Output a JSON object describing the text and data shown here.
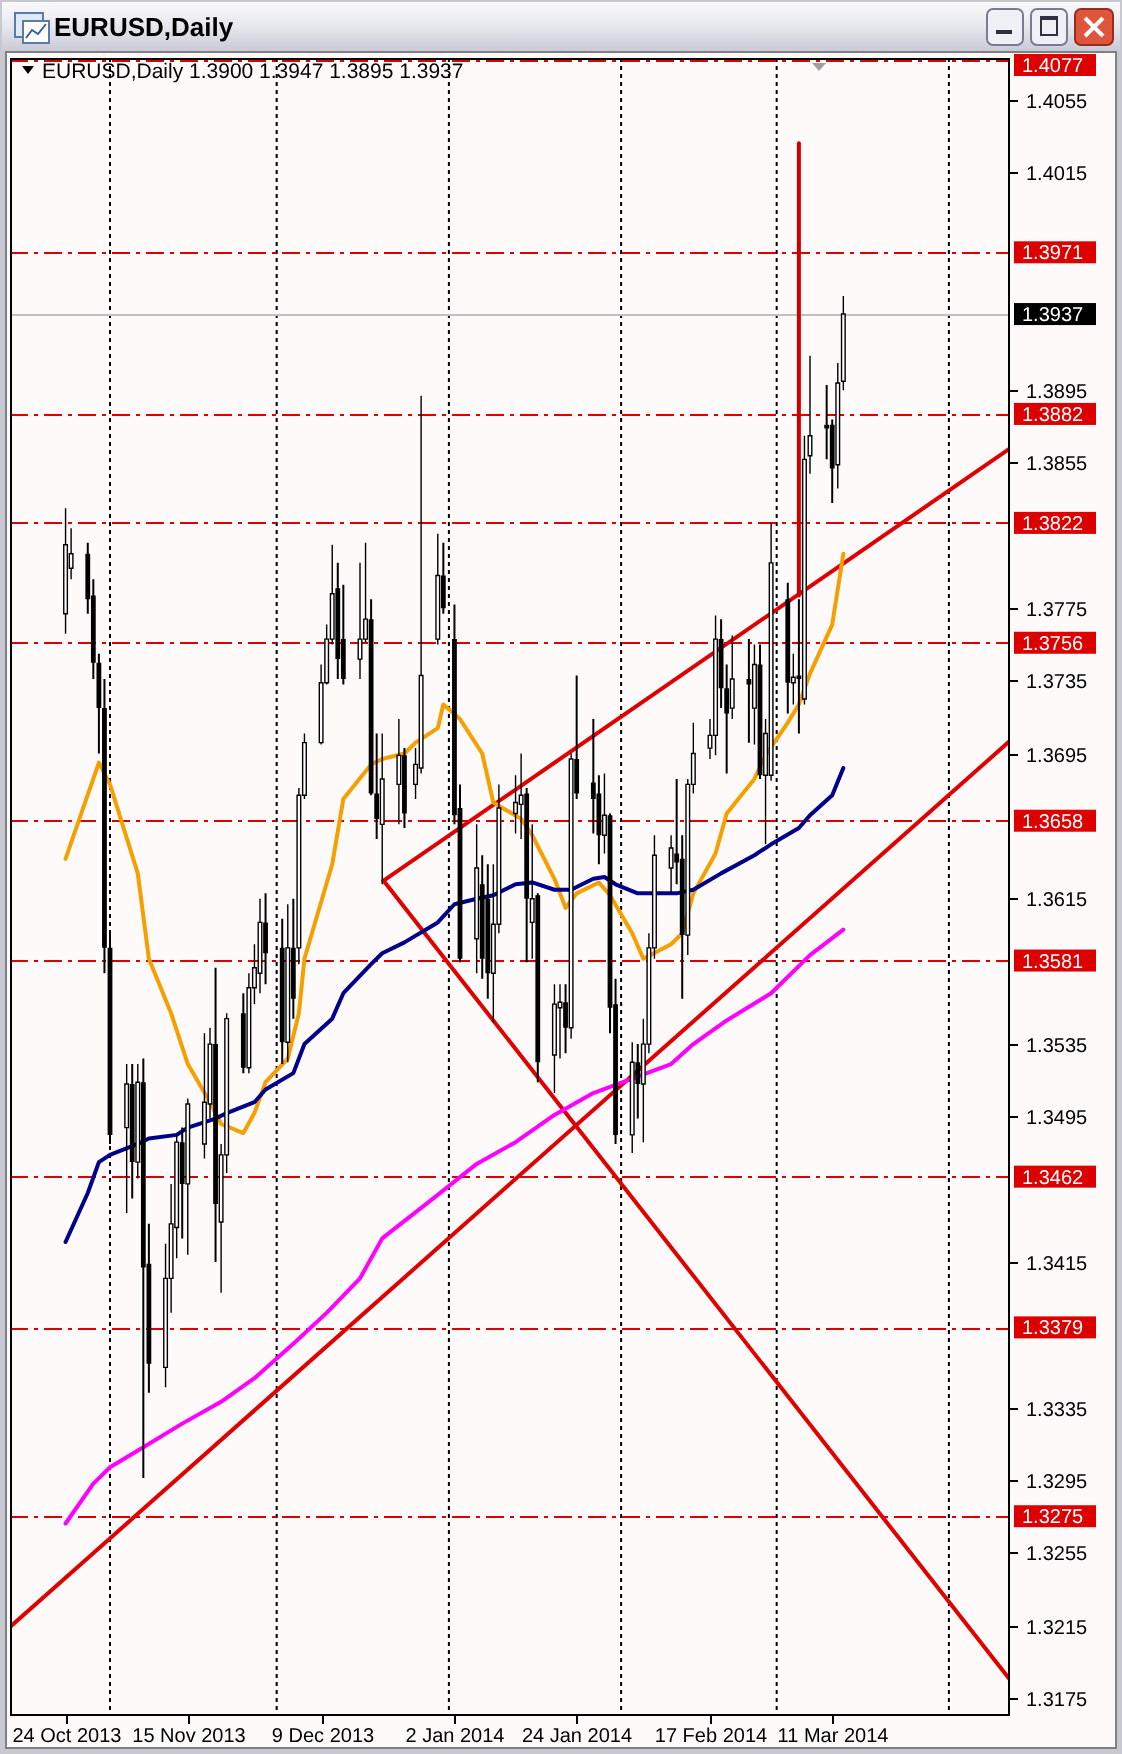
{
  "chart_data": {
    "type": "candlestick",
    "title": "EURUSD,Daily",
    "subtitle": "EURUSD,Daily 1.3900 1.3947 1.3895 1.3937",
    "x": [
      "2013-10-24",
      "2013-10-25",
      "2013-10-28",
      "2013-10-29",
      "2013-10-30",
      "2013-10-31",
      "2013-11-01",
      "2013-11-04",
      "2013-11-05",
      "2013-11-06",
      "2013-11-07",
      "2013-11-08",
      "2013-11-11",
      "2013-11-12",
      "2013-11-13",
      "2013-11-14",
      "2013-11-15",
      "2013-11-18",
      "2013-11-19",
      "2013-11-20",
      "2013-11-21",
      "2013-11-22",
      "2013-11-25",
      "2013-11-26",
      "2013-11-27",
      "2013-11-28",
      "2013-11-29",
      "2013-12-02",
      "2013-12-03",
      "2013-12-04",
      "2013-12-05",
      "2013-12-06",
      "2013-12-09",
      "2013-12-10",
      "2013-12-11",
      "2013-12-12",
      "2013-12-13",
      "2013-12-16",
      "2013-12-17",
      "2013-12-18",
      "2013-12-19",
      "2013-12-20",
      "2013-12-23",
      "2013-12-24",
      "2013-12-26",
      "2013-12-27",
      "2013-12-30",
      "2013-12-31",
      "2014-01-02",
      "2014-01-03",
      "2014-01-06",
      "2014-01-07",
      "2014-01-08",
      "2014-01-09",
      "2014-01-10",
      "2014-01-13",
      "2014-01-14",
      "2014-01-15",
      "2014-01-16",
      "2014-01-17",
      "2014-01-20",
      "2014-01-21",
      "2014-01-22",
      "2014-01-23",
      "2014-01-24",
      "2014-01-27",
      "2014-01-28",
      "2014-01-29",
      "2014-01-30",
      "2014-01-31",
      "2014-02-03",
      "2014-02-04",
      "2014-02-05",
      "2014-02-06",
      "2014-02-07",
      "2014-02-10",
      "2014-02-11",
      "2014-02-12",
      "2014-02-13",
      "2014-02-14",
      "2014-02-17",
      "2014-02-18",
      "2014-02-19",
      "2014-02-20",
      "2014-02-21",
      "2014-02-24",
      "2014-02-25",
      "2014-02-26",
      "2014-02-27",
      "2014-02-28",
      "2014-03-03",
      "2014-03-04",
      "2014-03-05",
      "2014-03-06",
      "2014-03-07",
      "2014-03-10",
      "2014-03-11",
      "2014-03-12",
      "2014-03-13"
    ],
    "ohlc": [
      [
        1.3772,
        1.383,
        1.3761,
        1.381
      ],
      [
        1.3797,
        1.3819,
        1.3791,
        1.3805
      ],
      [
        1.3805,
        1.3811,
        1.3772,
        1.378
      ],
      [
        1.3782,
        1.3791,
        1.3736,
        1.3745
      ],
      [
        1.3745,
        1.375,
        1.3695,
        1.372
      ],
      [
        1.372,
        1.3736,
        1.3574,
        1.3588
      ],
      [
        1.3588,
        1.3596,
        1.348,
        1.3485
      ],
      [
        1.3489,
        1.3524,
        1.3442,
        1.3513
      ],
      [
        1.3513,
        1.3524,
        1.345,
        1.347
      ],
      [
        1.347,
        1.3524,
        1.3461,
        1.3514
      ],
      [
        1.3514,
        1.3527,
        1.3296,
        1.3412
      ],
      [
        1.3414,
        1.3436,
        1.3343,
        1.3359
      ],
      [
        1.3357,
        1.3425,
        1.3346,
        1.3406
      ],
      [
        1.3406,
        1.3458,
        1.3387,
        1.3436
      ],
      [
        1.3434,
        1.3485,
        1.3417,
        1.3481
      ],
      [
        1.3481,
        1.3489,
        1.3428,
        1.3458
      ],
      [
        1.3458,
        1.3505,
        1.3419,
        1.3502
      ],
      [
        1.348,
        1.3541,
        1.3472,
        1.3503
      ],
      [
        1.3502,
        1.3544,
        1.3494,
        1.3535
      ],
      [
        1.3535,
        1.3577,
        1.3415,
        1.3447
      ],
      [
        1.3437,
        1.348,
        1.3398,
        1.3474
      ],
      [
        1.3474,
        1.3552,
        1.3464,
        1.3549
      ],
      [
        1.3552,
        1.3563,
        1.3519,
        1.3522
      ],
      [
        1.3522,
        1.3574,
        1.3519,
        1.3566
      ],
      [
        1.3566,
        1.359,
        1.3557,
        1.3577
      ],
      [
        1.3574,
        1.3615,
        1.3563,
        1.3602
      ],
      [
        1.3602,
        1.3618,
        1.3568,
        1.3585
      ],
      [
        1.3588,
        1.3604,
        1.3524,
        1.3536
      ],
      [
        1.3536,
        1.3612,
        1.3525,
        1.3588
      ],
      [
        1.3588,
        1.3615,
        1.3549,
        1.356
      ],
      [
        1.3588,
        1.3676,
        1.3579,
        1.3672
      ],
      [
        1.3672,
        1.3706,
        1.367,
        1.3701
      ],
      [
        1.3701,
        1.3744,
        1.37,
        1.3734
      ],
      [
        1.3734,
        1.3766,
        1.3733,
        1.3758
      ],
      [
        1.3758,
        1.381,
        1.3755,
        1.3783
      ],
      [
        1.3786,
        1.38,
        1.3736,
        1.3747
      ],
      [
        1.3758,
        1.3788,
        1.3733,
        1.3736
      ],
      [
        1.3747,
        1.38,
        1.3736,
        1.3758
      ],
      [
        1.3758,
        1.3811,
        1.3756,
        1.3769
      ],
      [
        1.3769,
        1.378,
        1.3672,
        1.3673
      ],
      [
        1.3673,
        1.3706,
        1.3648,
        1.3659
      ],
      [
        1.3656,
        1.3706,
        1.3623,
        1.3681
      ],
      [
        1.3678,
        1.3714,
        1.3656,
        1.3694
      ],
      [
        1.3694,
        1.3698,
        1.3654,
        1.3662
      ],
      [
        1.3678,
        1.3698,
        1.367,
        1.3689
      ],
      [
        1.3687,
        1.3892,
        1.3684,
        1.3738
      ],
      [
        1.3758,
        1.3816,
        1.3755,
        1.3793
      ],
      [
        1.3793,
        1.3811,
        1.3772,
        1.3775
      ],
      [
        1.3758,
        1.3777,
        1.3656,
        1.3661
      ],
      [
        1.3665,
        1.3678,
        1.358,
        1.3582
      ],
      [
        1.3593,
        1.3656,
        1.3574,
        1.3632
      ],
      [
        1.3623,
        1.3639,
        1.3571,
        1.3582
      ],
      [
        1.3615,
        1.3634,
        1.356,
        1.3574
      ],
      [
        1.3574,
        1.3634,
        1.3547,
        1.3601
      ],
      [
        1.3601,
        1.3678,
        1.3596,
        1.3665
      ],
      [
        1.3662,
        1.3683,
        1.3651,
        1.3668
      ],
      [
        1.3667,
        1.3695,
        1.3648,
        1.3672
      ],
      [
        1.3673,
        1.3676,
        1.358,
        1.3615
      ],
      [
        1.3602,
        1.3656,
        1.3582,
        1.3615
      ],
      [
        1.3617,
        1.3618,
        1.3514,
        1.3525
      ],
      [
        1.3529,
        1.3568,
        1.3508,
        1.3557
      ],
      [
        1.3555,
        1.3568,
        1.3527,
        1.3558
      ],
      [
        1.3558,
        1.3568,
        1.353,
        1.3544
      ],
      [
        1.3544,
        1.3695,
        1.3538,
        1.3692
      ],
      [
        1.3692,
        1.3738,
        1.367,
        1.3673
      ],
      [
        1.3679,
        1.3714,
        1.3651,
        1.367
      ],
      [
        1.3673,
        1.3683,
        1.3634,
        1.365
      ],
      [
        1.365,
        1.3684,
        1.364,
        1.3661
      ],
      [
        1.3661,
        1.3662,
        1.3541,
        1.3555
      ],
      [
        1.3557,
        1.3571,
        1.348,
        1.3485
      ],
      [
        1.3485,
        1.3536,
        1.3475,
        1.3525
      ],
      [
        1.3525,
        1.3535,
        1.3494,
        1.3513
      ],
      [
        1.3513,
        1.3549,
        1.3481,
        1.3535
      ],
      [
        1.3535,
        1.3596,
        1.353,
        1.3588
      ],
      [
        1.3588,
        1.365,
        1.3582,
        1.3639
      ],
      [
        1.3632,
        1.365,
        1.3618,
        1.3643
      ],
      [
        1.364,
        1.3681,
        1.3623,
        1.3635
      ],
      [
        1.3637,
        1.365,
        1.356,
        1.3595
      ],
      [
        1.3595,
        1.3681,
        1.3584,
        1.3678
      ],
      [
        1.3678,
        1.3712,
        1.3673,
        1.3695
      ],
      [
        1.3698,
        1.3714,
        1.3692,
        1.3705
      ],
      [
        1.3705,
        1.3771,
        1.3694,
        1.3758
      ],
      [
        1.3758,
        1.3769,
        1.372,
        1.3731
      ],
      [
        1.3731,
        1.3744,
        1.3684,
        1.3717
      ],
      [
        1.372,
        1.376,
        1.3714,
        1.3736
      ],
      [
        1.3736,
        1.3758,
        1.3701,
        1.3733
      ],
      [
        1.372,
        1.3755,
        1.37,
        1.3744
      ],
      [
        1.3744,
        1.3755,
        1.3681,
        1.3683
      ],
      [
        1.3683,
        1.3714,
        1.3645,
        1.3706
      ],
      [
        1.3683,
        1.3822,
        1.368,
        1.38
      ],
      [
        1.378,
        1.3789,
        1.3717,
        1.3734
      ],
      [
        1.3734,
        1.375,
        1.3722,
        1.3737
      ],
      [
        1.3738,
        1.378,
        1.3706,
        1.3736
      ],
      [
        1.3725,
        1.387,
        1.3722,
        1.3857
      ],
      [
        1.3859,
        1.3914,
        1.3849,
        1.387
      ],
      [
        1.3876,
        1.3898,
        1.3857,
        1.3874
      ],
      [
        1.3876,
        1.3879,
        1.3833,
        1.3852
      ],
      [
        1.3854,
        1.391,
        1.3841,
        1.3899
      ],
      [
        1.39,
        1.3947,
        1.3895,
        1.3937
      ]
    ],
    "series": [
      {
        "type": "line",
        "color": "#e00000",
        "x": [
          "2013-12-20T06:00",
          "2014-04-12"
        ],
        "values": [
          1.3625,
          1.3863
        ]
      },
      {
        "type": "line",
        "color": "#e00000",
        "x": [
          "2013-10-14",
          "2014-04-12"
        ],
        "values": [
          1.3214,
          1.3702
        ]
      },
      {
        "type": "line",
        "color": "#e00000",
        "x": [
          "2013-12-20T06:00",
          "2014-04-12"
        ],
        "values": [
          1.3625,
          1.3185
        ]
      },
      {
        "type": "line",
        "color": "#d00000",
        "x": [
          "2014-03-05",
          "2014-03-05"
        ],
        "values": [
          1.4031,
          1.3782
        ]
      },
      {
        "type": "line",
        "color": "#f5a000",
        "x": [
          "2013-10-24",
          "2013-10-30",
          "2013-11-01",
          "2013-11-06",
          "2013-11-08",
          "2013-11-12",
          "2013-11-15",
          "2013-11-19",
          "2013-11-21",
          "2013-11-25",
          "2013-11-27",
          "2013-11-29",
          "2013-12-03",
          "2013-12-05",
          "2013-12-06",
          "2013-12-11",
          "2013-12-13",
          "2013-12-18",
          "2013-12-20",
          "2013-12-24",
          "2013-12-26",
          "2013-12-30",
          "2013-12-31",
          "2014-01-03",
          "2014-01-07",
          "2014-01-09",
          "2014-01-14",
          "2014-01-16",
          "2014-01-20",
          "2014-01-22",
          "2014-01-24",
          "2014-01-28",
          "2014-01-30",
          "2014-02-03",
          "2014-02-05",
          "2014-02-10",
          "2014-02-12",
          "2014-02-14",
          "2014-02-18",
          "2014-02-20",
          "2014-02-25",
          "2014-02-27",
          "2014-03-03",
          "2014-03-05",
          "2014-03-07",
          "2014-03-11",
          "2014-03-13"
        ],
        "values": [
          1.3637,
          1.369,
          1.3678,
          1.3629,
          1.3582,
          1.3552,
          1.3524,
          1.3503,
          1.3491,
          1.3486,
          1.3497,
          1.3514,
          1.3527,
          1.3552,
          1.3582,
          1.3634,
          1.367,
          1.3689,
          1.3692,
          1.3695,
          1.3701,
          1.3709,
          1.3722,
          1.3714,
          1.3695,
          1.3668,
          1.3659,
          1.365,
          1.3626,
          1.361,
          1.3618,
          1.3624,
          1.3617,
          1.3596,
          1.3582,
          1.359,
          1.3596,
          1.3618,
          1.364,
          1.3662,
          1.3681,
          1.3694,
          1.3712,
          1.3722,
          1.3739,
          1.3766,
          1.3805
        ]
      },
      {
        "type": "line",
        "color": "#00008b",
        "x": [
          "2013-10-24",
          "2013-10-28",
          "2013-10-30",
          "2013-11-01",
          "2013-11-06",
          "2013-11-08",
          "2013-11-13",
          "2013-11-15",
          "2013-11-20",
          "2013-11-22",
          "2013-11-27",
          "2013-11-29",
          "2013-12-04",
          "2013-12-06",
          "2013-12-11",
          "2013-12-13",
          "2013-12-18",
          "2013-12-20",
          "2013-12-24",
          "2013-12-30",
          "2014-01-02",
          "2014-01-06",
          "2014-01-09",
          "2014-01-13",
          "2014-01-16",
          "2014-01-20",
          "2014-01-23",
          "2014-01-27",
          "2014-01-29",
          "2014-01-31",
          "2014-02-04",
          "2014-02-07",
          "2014-02-11",
          "2014-02-14",
          "2014-02-19",
          "2014-02-25",
          "2014-02-28",
          "2014-03-05",
          "2014-03-07",
          "2014-03-11",
          "2014-03-13"
        ],
        "values": [
          1.3426,
          1.3453,
          1.347,
          1.3474,
          1.348,
          1.3483,
          1.3485,
          1.3489,
          1.3494,
          1.3497,
          1.3503,
          1.351,
          1.3519,
          1.3535,
          1.3549,
          1.3563,
          1.3579,
          1.3585,
          1.3591,
          1.3602,
          1.3612,
          1.3615,
          1.3617,
          1.3623,
          1.3624,
          1.362,
          1.362,
          1.3626,
          1.3627,
          1.3623,
          1.3618,
          1.3618,
          1.3618,
          1.362,
          1.3629,
          1.3639,
          1.3645,
          1.3654,
          1.3661,
          1.3672,
          1.3687
        ]
      },
      {
        "type": "line",
        "color": "#ff00ff",
        "x": [
          "2013-10-24",
          "2013-10-29",
          "2013-11-01",
          "2013-11-07",
          "2013-11-14",
          "2013-11-21",
          "2013-11-27",
          "2013-12-04",
          "2013-12-10",
          "2013-12-16",
          "2013-12-20",
          "2013-12-30",
          "2014-01-06",
          "2014-01-13",
          "2014-01-20",
          "2014-01-27",
          "2014-02-10",
          "2014-02-14",
          "2014-02-20",
          "2014-02-28",
          "2014-03-07",
          "2014-03-13"
        ],
        "values": [
          1.3271,
          1.3293,
          1.3302,
          1.3313,
          1.3326,
          1.3338,
          1.3351,
          1.337,
          1.3387,
          1.3406,
          1.3428,
          1.3452,
          1.3469,
          1.3481,
          1.3496,
          1.3508,
          1.3524,
          1.3535,
          1.3548,
          1.3563,
          1.3584,
          1.3598
        ]
      }
    ],
    "xlim": [
      "2013-10-14",
      "2014-04-12"
    ],
    "ylim": [
      1.3165,
      1.4078
    ],
    "xticks": [
      {
        "value": "2013-10-24",
        "label": "24 Oct 2013"
      },
      {
        "value": "2013-11-15",
        "label": "15 Nov 2013"
      },
      {
        "value": "2013-12-09",
        "label": "9 Dec 2013"
      },
      {
        "value": "2014-01-02",
        "label": "2 Jan 2014"
      },
      {
        "value": "2014-01-24",
        "label": "24 Jan 2014"
      },
      {
        "value": "2014-02-17",
        "label": "17 Feb 2014"
      },
      {
        "value": "2014-03-11",
        "label": "11 Mar 2014"
      }
    ],
    "yticks": [
      1.3175,
      1.3215,
      1.3255,
      1.3295,
      1.3335,
      1.3415,
      1.3495,
      1.3535,
      1.3615,
      1.3695,
      1.3735,
      1.3775,
      1.3855,
      1.3895,
      1.4015,
      1.4055
    ],
    "ref_lines": [
      {
        "axis": "x",
        "value": "2013-11-01",
        "color": "#000000",
        "line_style": "dotted"
      },
      {
        "axis": "x",
        "value": "2013-12-01",
        "color": "#000000",
        "line_style": "dotted"
      },
      {
        "axis": "x",
        "value": "2014-01-01",
        "color": "#000000",
        "line_style": "dotted"
      },
      {
        "axis": "x",
        "value": "2014-02-01",
        "color": "#000000",
        "line_style": "dotted"
      },
      {
        "axis": "x",
        "value": "2014-03-01",
        "color": "#000000",
        "line_style": "dotted"
      },
      {
        "axis": "x",
        "value": "2014-04-01",
        "color": "#000000",
        "line_style": "dotted"
      },
      {
        "axis": "y",
        "value": 1.4077,
        "label": "1.4077",
        "color": "#dd0000",
        "line_style": "dashed"
      },
      {
        "axis": "y",
        "value": 1.3971,
        "label": "1.3971",
        "color": "#dd0000",
        "line_style": "dashed"
      },
      {
        "axis": "y",
        "value": 1.3937,
        "label": "1.3937",
        "color": "#c0c0c0",
        "line_style": "solid"
      },
      {
        "axis": "y",
        "value": 1.3882,
        "label": "1.3882",
        "color": "#dd0000",
        "line_style": "dashed"
      },
      {
        "axis": "y",
        "value": 1.3822,
        "label": "1.3822",
        "color": "#dd0000",
        "line_style": "dashed"
      },
      {
        "axis": "y",
        "value": 1.3756,
        "label": "1.3756",
        "color": "#dd0000",
        "line_style": "dashed"
      },
      {
        "axis": "y",
        "value": 1.3658,
        "label": "1.3658",
        "color": "#dd0000",
        "line_style": "dashed"
      },
      {
        "axis": "y",
        "value": 1.3581,
        "label": "1.3581",
        "color": "#dd0000",
        "line_style": "dashed"
      },
      {
        "axis": "y",
        "value": 1.3462,
        "label": "1.3462",
        "color": "#dd0000",
        "line_style": "dashed"
      },
      {
        "axis": "y",
        "value": 1.3379,
        "label": "1.3379",
        "color": "#dd0000",
        "line_style": "dashed"
      },
      {
        "axis": "y",
        "value": 1.3275,
        "label": "1.3275",
        "color": "#dd0000",
        "line_style": "dashed"
      }
    ]
  }
}
